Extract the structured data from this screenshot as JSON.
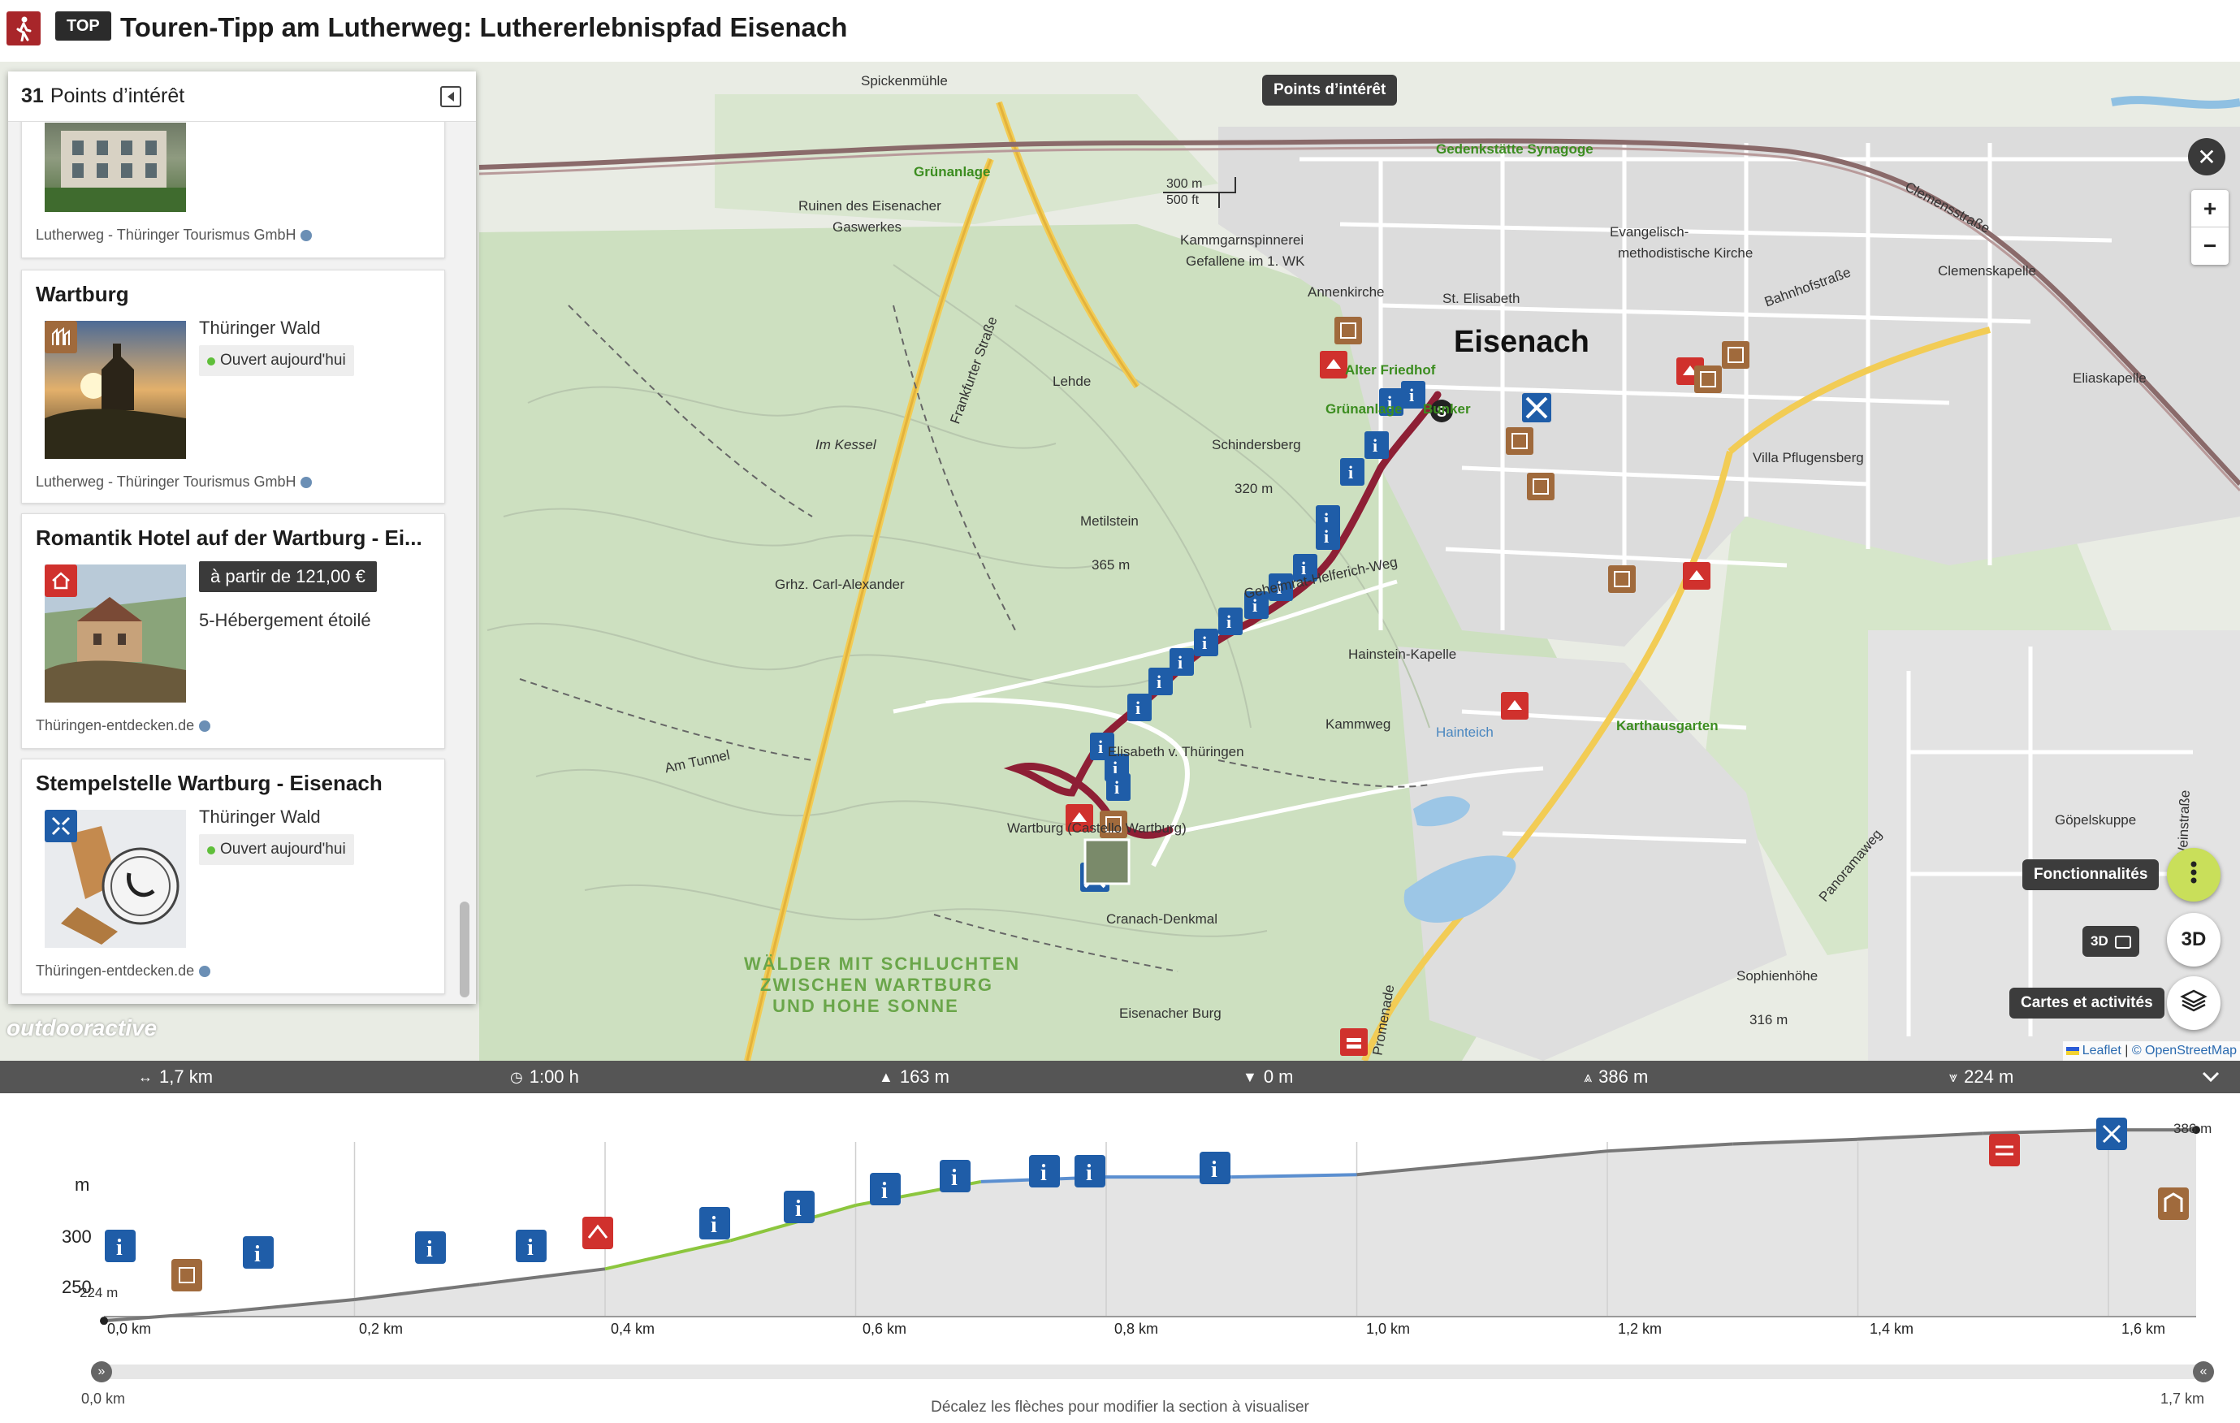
{
  "header": {
    "badge": "TOP",
    "title": "Touren-Tipp am Lutherweg: Luthererlebnispfad Eisenach"
  },
  "poi_panel": {
    "count": "31",
    "label": "Points d’intérêt",
    "items": [
      {
        "title": "",
        "source": "Lutherweg - Thüringer Tourismus GmbH"
      },
      {
        "title": "Wartburg",
        "region": "Thüringer Wald",
        "status": "Ouvert aujourd'hui",
        "source": "Lutherweg - Thüringer Tourismus GmbH"
      },
      {
        "title": "Romantik Hotel auf der Wartburg - Ei...",
        "price": "à partir de 121,00 €",
        "stars": "5-Hébergement étoilé",
        "source": "Thüringen-entdecken.de"
      },
      {
        "title": "Stempelstelle Wartburg - Eisenach",
        "region": "Thüringer Wald",
        "status": "Ouvert aujourd'hui",
        "source": "Thüringen-entdecken.de"
      }
    ]
  },
  "map": {
    "poi_toggle": "Points d’intérêt",
    "scale_m": "300 m",
    "scale_ft": "500 ft",
    "features_label": "Fonctionnalités",
    "threed_label": "3D",
    "threed_button": "3D",
    "layers_label": "Cartes et activités",
    "watermark": "outdooractive",
    "attribution_leaflet": "Leaflet",
    "attribution_osm": "© OpenStreetMap",
    "labels": {
      "spickenmuhle": "Spickenmühle",
      "grunanlage1": "Grünanlage",
      "ruinen": "Ruinen des Eisenacher",
      "gaswerkes": "Gaswerkes",
      "kammgarn": "Kammgarnspinnerei",
      "gefallene": "Gefallene im 1. WK",
      "annenkirche": "Annenkirche",
      "synagoge": "Gedenkstätte Synagoge",
      "evangelisch": "Evangelisch-",
      "methodistische": "methodistische Kirche",
      "clemensstrasse": "Clemensstraße",
      "clemenskapelle": "Clemenskapelle",
      "st_elisabeth": "St. Elisabeth",
      "eisenach": "Eisenach",
      "bahnhofstrasse": "Bahnhofstraße",
      "eliaskapelle": "Eliaskapelle",
      "alter_friedhof": "Alter Friedhof",
      "grunanlage2": "Grünanlage",
      "bunker": "Bunker",
      "lehde": "Lehde",
      "frankfurter": "Frankfurter Straße",
      "im_kessel": "Im Kessel",
      "schindersberg": "Schindersberg",
      "h320": "320 m",
      "villa": "Villa Pflugensberg",
      "metilstein": "Metilstein",
      "h365": "365 m",
      "carl_alexander": "Grhz. Carl-Alexander",
      "helferich": "Geheimrat-Helferich-Weg",
      "hainstein": "Hainstein-Kapelle",
      "kammweg": "Kammweg",
      "karthausgarten": "Karthausgarten",
      "am_tunnel": "Am Tunnel",
      "elisabeth": "Elisabeth v. Thüringen",
      "wartburg_castle": "Wartburg (Castello Wartburg)",
      "cranach": "Cranach-Denkmal",
      "forest1": "WÄLDER MIT SCHLUCHTEN",
      "forest2": "ZWISCHEN WARTBURG",
      "forest3": "UND HOHE SONNE",
      "eisenacher_burg": "Eisenacher Burg",
      "panoramaweg": "Panoramaweg",
      "gopelskuppe": "Göpelskuppe",
      "weinstrasse": "Weinstraße",
      "sophienhohe": "Sophienhöhe",
      "h316": "316 m",
      "hainteich": "Hainteich",
      "promenade": "Promenade"
    }
  },
  "stats": {
    "distance": "1,7 km",
    "duration": "1:00 h",
    "ascent": "163 m",
    "descent": "0 m",
    "high_point": "386 m",
    "low_point": "224 m"
  },
  "profile": {
    "y_unit": "m",
    "y_ticks": [
      "300",
      "250"
    ],
    "x_ticks": [
      "0,0 km",
      "0,2 km",
      "0,4 km",
      "0,6 km",
      "0,8 km",
      "1,0 km",
      "1,2 km",
      "1,4 km",
      "1,6 km"
    ],
    "start_elev": "224 m",
    "end_elev": "386 m",
    "range_hint": "Décalez les flèches pour modifier la section à visualiser",
    "range_start": "0,0 km",
    "range_end": "1,7 km"
  },
  "chart_data": {
    "type": "area",
    "xlabel": "",
    "ylabel": "m",
    "x": [
      0.0,
      0.1,
      0.2,
      0.3,
      0.4,
      0.5,
      0.6,
      0.7,
      0.8,
      0.9,
      1.0,
      1.1,
      1.2,
      1.3,
      1.4,
      1.5,
      1.6,
      1.67
    ],
    "series": [
      {
        "values": [
          224,
          232,
          242,
          255,
          268,
          292,
          322,
          342,
          346,
          346,
          348,
          358,
          368,
          374,
          378,
          383,
          386,
          386
        ]
      }
    ],
    "xlim": [
      0.0,
      1.67
    ],
    "ylim": [
      200,
      400
    ]
  },
  "colors": {
    "route": "#8e1f35",
    "info_marker": "#1f5da8",
    "hotel_marker": "#d0312d",
    "sight_marker": "#a06a3c",
    "stamp_marker": "#1f5da8",
    "accent_button": "#c9df5a"
  }
}
